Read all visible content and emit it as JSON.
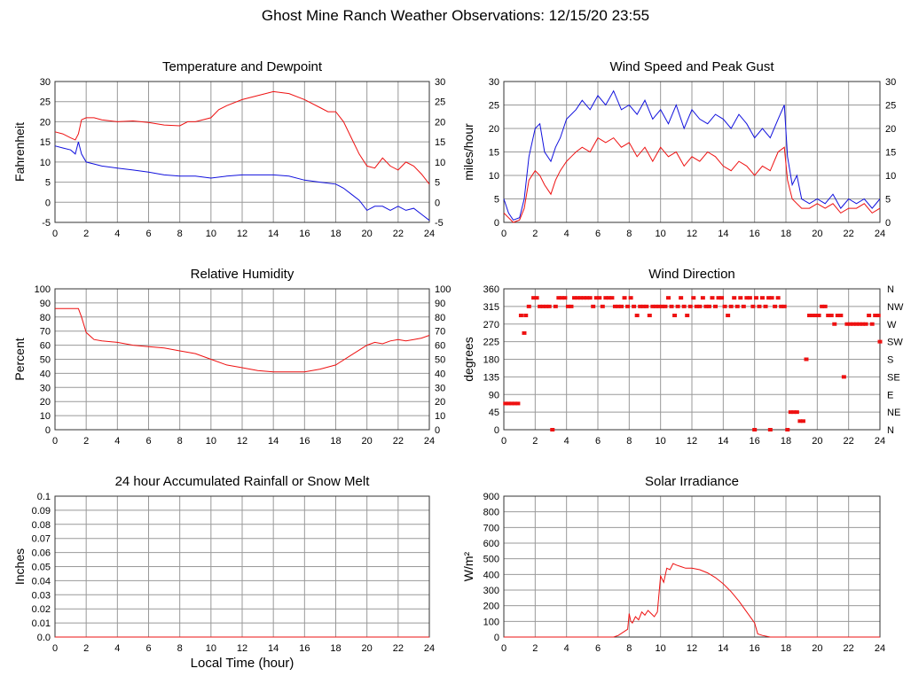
{
  "page": {
    "title": "Ghost Mine Ranch Weather Observations: 12/15/20 23:55",
    "xlabel_bottom": "Local Time (hour)"
  },
  "colors": {
    "red": "#ee1111",
    "blue": "#1111dd",
    "grid": "#999999"
  },
  "chart_data": [
    {
      "id": "temp",
      "type": "line",
      "title": "Temperature and Dewpoint",
      "ylabel": "Fahrenheit",
      "xlim": [
        0,
        24
      ],
      "xticks": [
        0,
        2,
        4,
        6,
        8,
        10,
        12,
        14,
        16,
        18,
        20,
        22,
        24
      ],
      "ylim": [
        -5,
        30
      ],
      "yticks": [
        -5,
        0,
        5,
        10,
        15,
        20,
        25,
        30
      ],
      "right_ticks": true,
      "series": [
        {
          "color": "red",
          "x": [
            0,
            0.5,
            1,
            1.3,
            1.5,
            1.7,
            2,
            2.5,
            3,
            4,
            5,
            6,
            7,
            8,
            8.5,
            9,
            10,
            10.5,
            11,
            12,
            13,
            14,
            15,
            16,
            17,
            17.5,
            18,
            18.5,
            19,
            19.5,
            20,
            20.5,
            21,
            21.5,
            22,
            22.5,
            23,
            23.5,
            24
          ],
          "y": [
            17.5,
            17,
            16,
            15.5,
            17,
            20.5,
            21,
            21,
            20.5,
            20,
            20.2,
            19.8,
            19.2,
            19,
            20,
            20,
            21,
            23,
            24,
            25.5,
            26.5,
            27.5,
            27,
            25.5,
            23.5,
            22.5,
            22.5,
            20,
            16,
            12,
            9,
            8.5,
            11,
            9,
            8,
            10,
            9,
            7,
            4.5
          ]
        },
        {
          "color": "blue",
          "x": [
            0,
            0.5,
            1,
            1.3,
            1.5,
            1.7,
            2,
            2.5,
            3,
            4,
            5,
            6,
            7,
            8,
            9,
            10,
            11,
            12,
            13,
            14,
            15,
            16,
            17,
            18,
            18.5,
            19,
            19.5,
            20,
            20.5,
            21,
            21.5,
            22,
            22.5,
            23,
            23.5,
            24
          ],
          "y": [
            14,
            13.5,
            13,
            12,
            15,
            12,
            10,
            9.5,
            9,
            8.5,
            8,
            7.5,
            6.8,
            6.5,
            6.5,
            6,
            6.5,
            6.8,
            6.8,
            6.8,
            6.5,
            5.5,
            5,
            4.5,
            3.5,
            2,
            0.5,
            -2,
            -1,
            -1,
            -2,
            -1,
            -2,
            -1.5,
            -3,
            -4.5
          ]
        }
      ]
    },
    {
      "id": "wind",
      "type": "line",
      "title": "Wind Speed and Peak Gust",
      "ylabel": "miles/hour",
      "xlim": [
        0,
        24
      ],
      "xticks": [
        0,
        2,
        4,
        6,
        8,
        10,
        12,
        14,
        16,
        18,
        20,
        22,
        24
      ],
      "ylim": [
        0,
        30
      ],
      "yticks": [
        0,
        5,
        10,
        15,
        20,
        25,
        30
      ],
      "right_ticks": true,
      "series": [
        {
          "color": "blue",
          "x": [
            0,
            0.3,
            0.6,
            1,
            1.3,
            1.6,
            2,
            2.3,
            2.6,
            3,
            3.3,
            3.6,
            4,
            4.3,
            4.6,
            5,
            5.5,
            6,
            6.5,
            7,
            7.5,
            8,
            8.5,
            9,
            9.5,
            10,
            10.5,
            11,
            11.5,
            12,
            12.5,
            13,
            13.5,
            14,
            14.5,
            15,
            15.5,
            16,
            16.5,
            17,
            17.5,
            17.9,
            18.1,
            18.4,
            18.7,
            19,
            19.5,
            20,
            20.5,
            21,
            21.5,
            22,
            22.5,
            23,
            23.5,
            24
          ],
          "y": [
            5,
            2,
            0.5,
            1,
            5,
            14,
            20,
            21,
            15,
            13,
            16,
            18,
            22,
            23,
            24,
            26,
            24,
            27,
            25,
            28,
            24,
            25,
            23,
            26,
            22,
            24,
            21,
            25,
            20,
            24,
            22,
            21,
            23,
            22,
            20,
            23,
            21,
            18,
            20,
            18,
            22,
            25,
            14,
            8,
            10,
            5,
            4,
            5,
            4,
            6,
            3,
            5,
            4,
            5,
            3,
            5
          ]
        },
        {
          "color": "red",
          "x": [
            0,
            0.3,
            0.6,
            1,
            1.3,
            1.6,
            2,
            2.3,
            2.6,
            3,
            3.3,
            3.6,
            4,
            4.3,
            4.6,
            5,
            5.5,
            6,
            6.5,
            7,
            7.5,
            8,
            8.5,
            9,
            9.5,
            10,
            10.5,
            11,
            11.5,
            12,
            12.5,
            13,
            13.5,
            14,
            14.5,
            15,
            15.5,
            16,
            16.5,
            17,
            17.5,
            17.9,
            18.1,
            18.4,
            18.7,
            19,
            19.5,
            20,
            20.5,
            21,
            21.5,
            22,
            22.5,
            23,
            23.5,
            24
          ],
          "y": [
            2,
            1,
            0,
            0.5,
            3,
            9,
            11,
            10,
            8,
            6,
            9,
            11,
            13,
            14,
            15,
            16,
            15,
            18,
            17,
            18,
            16,
            17,
            14,
            16,
            13,
            16,
            14,
            15,
            12,
            14,
            13,
            15,
            14,
            12,
            11,
            13,
            12,
            10,
            12,
            11,
            15,
            16,
            9,
            5,
            4,
            3,
            3,
            4,
            3,
            4,
            2,
            3,
            3,
            4,
            2,
            3
          ]
        }
      ]
    },
    {
      "id": "rh",
      "type": "line",
      "title": "Relative Humidity",
      "ylabel": "Percent",
      "xlim": [
        0,
        24
      ],
      "xticks": [
        0,
        2,
        4,
        6,
        8,
        10,
        12,
        14,
        16,
        18,
        20,
        22,
        24
      ],
      "ylim": [
        0,
        100
      ],
      "yticks": [
        0,
        10,
        20,
        30,
        40,
        50,
        60,
        70,
        80,
        90,
        100
      ],
      "right_ticks": true,
      "series": [
        {
          "color": "red",
          "x": [
            0,
            0.5,
            1,
            1.5,
            1.7,
            2,
            2.5,
            3,
            4,
            5,
            6,
            7,
            8,
            9,
            10,
            11,
            12,
            13,
            14,
            15,
            16,
            17,
            18,
            19,
            20,
            20.5,
            21,
            21.5,
            22,
            22.5,
            23,
            23.5,
            24
          ],
          "y": [
            86,
            86,
            86,
            86,
            80,
            69,
            64,
            63,
            62,
            60,
            59,
            58,
            56,
            54,
            50,
            46,
            44,
            42,
            41,
            41,
            41,
            43,
            46,
            53,
            60,
            62,
            61,
            63,
            64,
            63,
            64,
            65,
            67
          ]
        }
      ]
    },
    {
      "id": "dir",
      "type": "scatter",
      "title": "Wind Direction",
      "ylabel": "degrees",
      "xlim": [
        0,
        24
      ],
      "xticks": [
        0,
        2,
        4,
        6,
        8,
        10,
        12,
        14,
        16,
        18,
        20,
        22,
        24
      ],
      "ylim": [
        0,
        360
      ],
      "yticks": [
        0,
        45,
        90,
        135,
        180,
        225,
        270,
        315,
        360
      ],
      "right_labels": [
        "N",
        "NE",
        "E",
        "SE",
        "S",
        "SW",
        "W",
        "NW",
        "N"
      ],
      "series": [
        {
          "color": "red",
          "x": [
            0.1,
            0.3,
            0.5,
            0.7,
            0.9,
            1.1,
            1.3,
            1.4,
            1.6,
            1.9,
            2.1,
            2.3,
            2.5,
            2.7,
            2.9,
            3.1,
            3.3,
            3.5,
            3.7,
            3.9,
            4.1,
            4.3,
            4.5,
            4.7,
            4.9,
            5.1,
            5.3,
            5.5,
            5.7,
            5.9,
            6.1,
            6.3,
            6.5,
            6.7,
            6.9,
            7.1,
            7.3,
            7.5,
            7.7,
            7.9,
            8.1,
            8.3,
            8.5,
            8.7,
            8.9,
            9.1,
            9.3,
            9.5,
            9.7,
            9.9,
            10.1,
            10.3,
            10.5,
            10.7,
            10.9,
            11.1,
            11.3,
            11.5,
            11.7,
            11.9,
            12.1,
            12.3,
            12.5,
            12.7,
            12.9,
            13.1,
            13.3,
            13.5,
            13.7,
            13.9,
            14.1,
            14.3,
            14.5,
            14.7,
            14.9,
            15.1,
            15.3,
            15.5,
            15.7,
            15.9,
            16.0,
            16.1,
            16.3,
            16.5,
            16.7,
            16.9,
            17.0,
            17.1,
            17.3,
            17.5,
            17.7,
            17.9,
            18.1,
            18.3,
            18.5,
            18.7,
            18.9,
            19.1,
            19.3,
            19.5,
            19.7,
            19.9,
            20.1,
            20.3,
            20.5,
            20.7,
            20.9,
            21.1,
            21.3,
            21.5,
            21.7,
            21.9,
            22.1,
            22.3,
            22.5,
            22.7,
            22.9,
            23.1,
            23.3,
            23.5,
            23.7,
            23.9,
            24
          ],
          "y": [
            67,
            67,
            67,
            67,
            67,
            292,
            247,
            292,
            315,
            337,
            337,
            315,
            315,
            315,
            315,
            0,
            315,
            337,
            337,
            337,
            315,
            315,
            337,
            337,
            337,
            337,
            337,
            337,
            315,
            337,
            337,
            315,
            337,
            337,
            337,
            315,
            315,
            315,
            337,
            315,
            337,
            315,
            292,
            315,
            315,
            315,
            292,
            315,
            315,
            315,
            315,
            315,
            337,
            315,
            292,
            315,
            337,
            315,
            292,
            315,
            337,
            315,
            315,
            337,
            315,
            315,
            337,
            315,
            337,
            337,
            315,
            292,
            315,
            337,
            315,
            337,
            315,
            337,
            337,
            315,
            0,
            337,
            315,
            337,
            315,
            337,
            0,
            337,
            315,
            337,
            315,
            315,
            0,
            45,
            45,
            45,
            22,
            22,
            180,
            292,
            292,
            292,
            292,
            315,
            315,
            292,
            292,
            270,
            292,
            292,
            135,
            270,
            270,
            270,
            270,
            270,
            270,
            270,
            292,
            270,
            292,
            292,
            225
          ]
        }
      ]
    },
    {
      "id": "rain",
      "type": "line",
      "title": "24 hour Accumulated Rainfall or Snow Melt",
      "ylabel": "Inches",
      "xlim": [
        0,
        24
      ],
      "xticks": [
        0,
        2,
        4,
        6,
        8,
        10,
        12,
        14,
        16,
        18,
        20,
        22,
        24
      ],
      "ylim": [
        0,
        0.1
      ],
      "yticks": [
        0,
        0.01,
        0.02,
        0.03,
        0.04,
        0.05,
        0.06,
        0.07,
        0.08,
        0.09,
        0.1
      ],
      "ytick_labels": [
        "0.0",
        "0.01",
        "0.02",
        "0.03",
        "0.04",
        "0.05",
        "0.06",
        "0.07",
        "0.08",
        "0.09",
        "0.1"
      ],
      "series": [
        {
          "color": "red",
          "x": [
            0,
            24
          ],
          "y": [
            0,
            0
          ]
        }
      ]
    },
    {
      "id": "solar",
      "type": "line",
      "title": "Solar Irradiance",
      "ylabel": "W/m²",
      "xlim": [
        0,
        24
      ],
      "xticks": [
        0,
        2,
        4,
        6,
        8,
        10,
        12,
        14,
        16,
        18,
        20,
        22,
        24
      ],
      "ylim": [
        0,
        900
      ],
      "yticks": [
        0,
        100,
        200,
        300,
        400,
        500,
        600,
        700,
        800,
        900
      ],
      "series": [
        {
          "color": "red",
          "x": [
            0,
            7,
            7.3,
            7.6,
            7.9,
            8.0,
            8.1,
            8.2,
            8.4,
            8.6,
            8.8,
            9,
            9.2,
            9.4,
            9.6,
            9.8,
            10,
            10.2,
            10.4,
            10.6,
            10.8,
            11,
            11.3,
            11.6,
            12,
            12.5,
            13,
            13.5,
            14,
            14.5,
            15,
            15.5,
            16,
            16.2,
            16.5,
            17,
            18,
            24
          ],
          "y": [
            0,
            0,
            10,
            30,
            50,
            150,
            100,
            90,
            130,
            110,
            160,
            140,
            170,
            150,
            130,
            160,
            390,
            350,
            440,
            430,
            470,
            460,
            450,
            440,
            440,
            430,
            410,
            380,
            340,
            290,
            230,
            160,
            90,
            20,
            10,
            0,
            0,
            0
          ]
        }
      ]
    }
  ]
}
